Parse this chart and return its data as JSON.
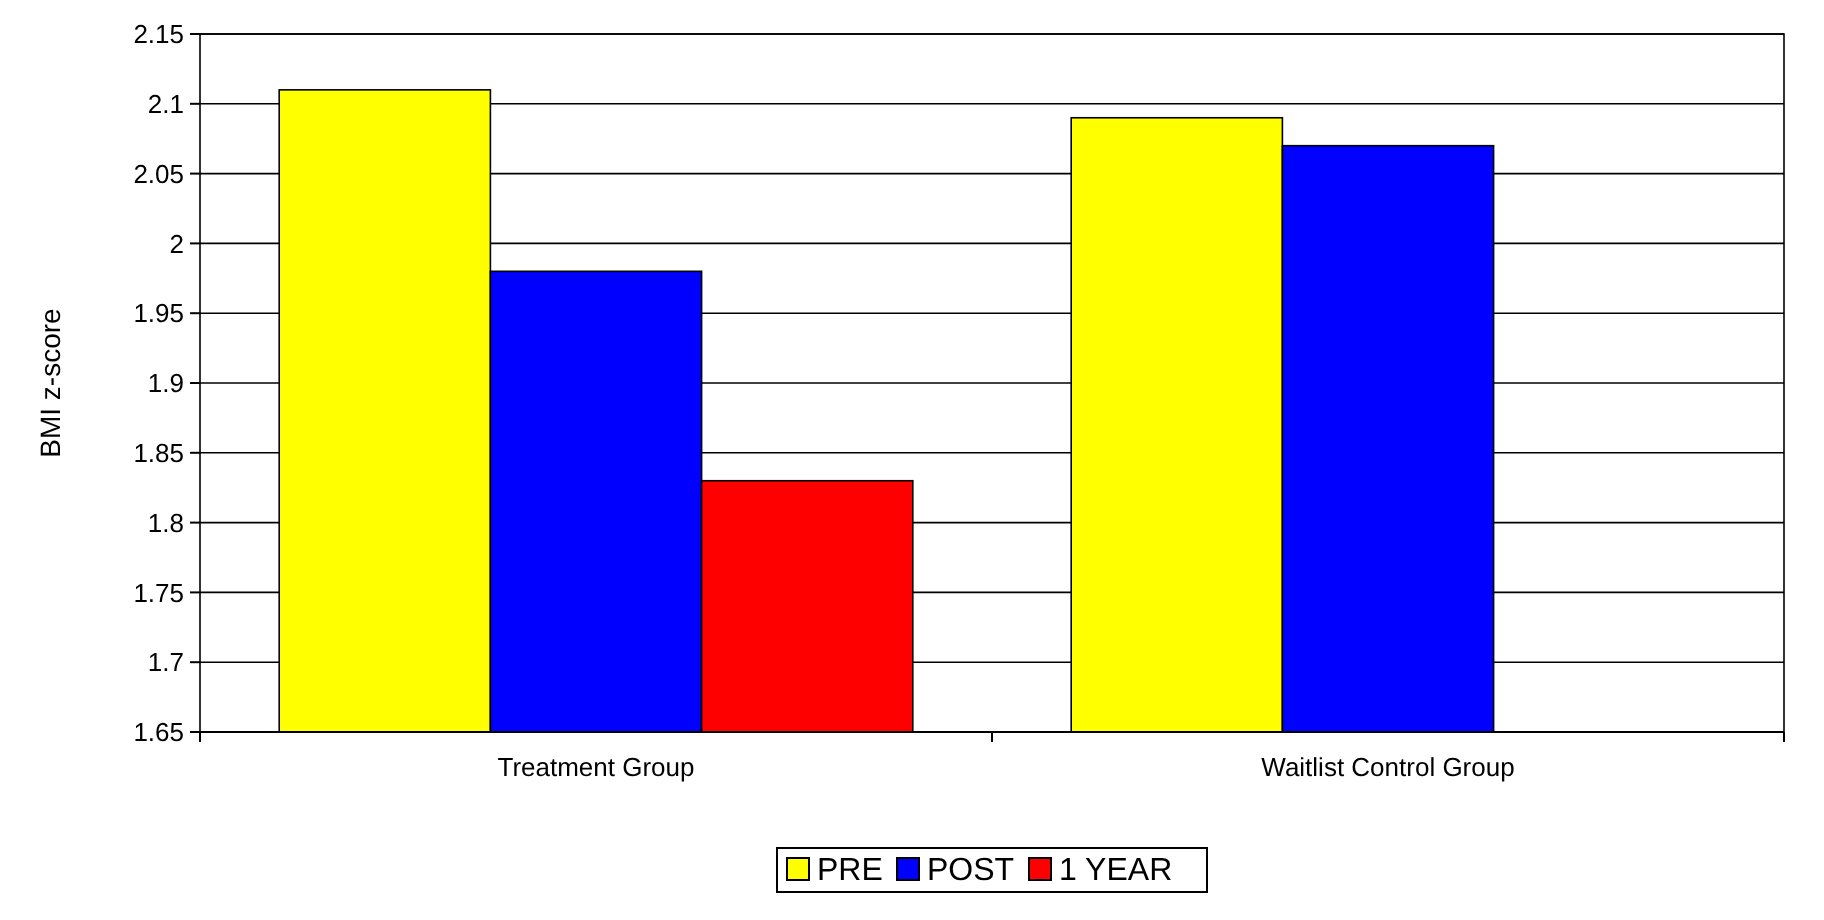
{
  "chart_data": {
    "type": "bar",
    "ylabel": "BMI z-score",
    "categories": [
      "Treatment Group",
      "Waitlist Control Group"
    ],
    "series": [
      {
        "name": "PRE",
        "color": "#ffff00",
        "values": [
          2.11,
          2.09
        ]
      },
      {
        "name": "POST",
        "color": "#0000ff",
        "values": [
          1.98,
          2.07
        ]
      },
      {
        "name": "1 YEAR",
        "color": "#ff0000",
        "values": [
          1.83,
          null
        ]
      }
    ],
    "ylim": [
      1.65,
      2.15
    ],
    "yticks": [
      1.65,
      1.7,
      1.75,
      1.8,
      1.85,
      1.9,
      1.95,
      2,
      2.05,
      2.1,
      2.15
    ],
    "grid": "y",
    "legend": "bottom"
  }
}
